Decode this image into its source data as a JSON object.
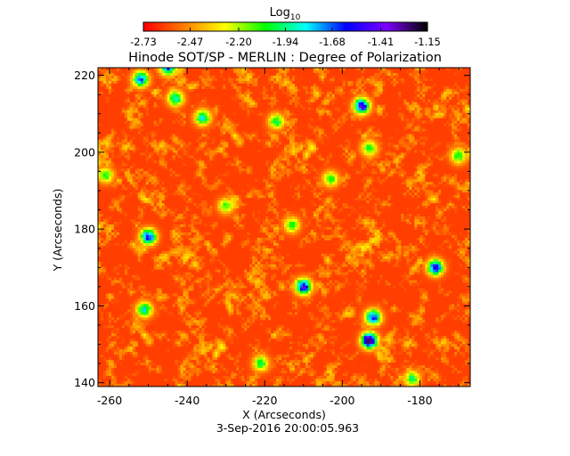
{
  "chart_data": {
    "type": "heatmap",
    "title": "Hinode SOT/SP - MERLIN : Degree of Polarization",
    "xlabel": "X (Arcseconds)",
    "ylabel": "Y (Arcseconds)",
    "timestamp": "3-Sep-2016 20:00:05.963",
    "xlim": [
      -263,
      -167
    ],
    "ylim": [
      139,
      222
    ],
    "x_ticks": [
      -260,
      -240,
      -220,
      -200,
      -180
    ],
    "y_ticks": [
      140,
      160,
      180,
      200,
      220
    ],
    "colorbar": {
      "label_base": "Log",
      "label_sub": "10",
      "min": -2.73,
      "max": -1.15,
      "ticks": [
        "-2.73",
        "-2.47",
        "-2.20",
        "-1.94",
        "-1.68",
        "-1.41",
        "-1.15"
      ],
      "colors": [
        "#ff0000",
        "#ff7f00",
        "#ffff00",
        "#00ff00",
        "#00ffff",
        "#0000ff",
        "#7f00ff",
        "#000000"
      ]
    },
    "background_level": -2.62,
    "features": [
      {
        "x": -193,
        "y": 151,
        "peak": -1.2
      },
      {
        "x": -210,
        "y": 165,
        "peak": -1.45
      },
      {
        "x": -176,
        "y": 170,
        "peak": -1.5
      },
      {
        "x": -195,
        "y": 212,
        "peak": -1.45
      },
      {
        "x": -250,
        "y": 178,
        "peak": -1.55
      },
      {
        "x": -252,
        "y": 219,
        "peak": -1.65
      },
      {
        "x": -245,
        "y": 222,
        "peak": -1.7
      },
      {
        "x": -243,
        "y": 214,
        "peak": -1.85
      },
      {
        "x": -236,
        "y": 209,
        "peak": -1.85
      },
      {
        "x": -217,
        "y": 208,
        "peak": -2.0
      },
      {
        "x": -193,
        "y": 201,
        "peak": -2.0
      },
      {
        "x": -213,
        "y": 181,
        "peak": -2.05
      },
      {
        "x": -192,
        "y": 157,
        "peak": -1.6
      },
      {
        "x": -251,
        "y": 159,
        "peak": -1.85
      },
      {
        "x": -221,
        "y": 145,
        "peak": -2.0
      },
      {
        "x": -261,
        "y": 194,
        "peak": -2.05
      },
      {
        "x": -182,
        "y": 141,
        "peak": -2.0
      },
      {
        "x": -230,
        "y": 186,
        "peak": -2.1
      },
      {
        "x": -203,
        "y": 193,
        "peak": -2.05
      },
      {
        "x": -170,
        "y": 199,
        "peak": -2.0
      }
    ]
  }
}
